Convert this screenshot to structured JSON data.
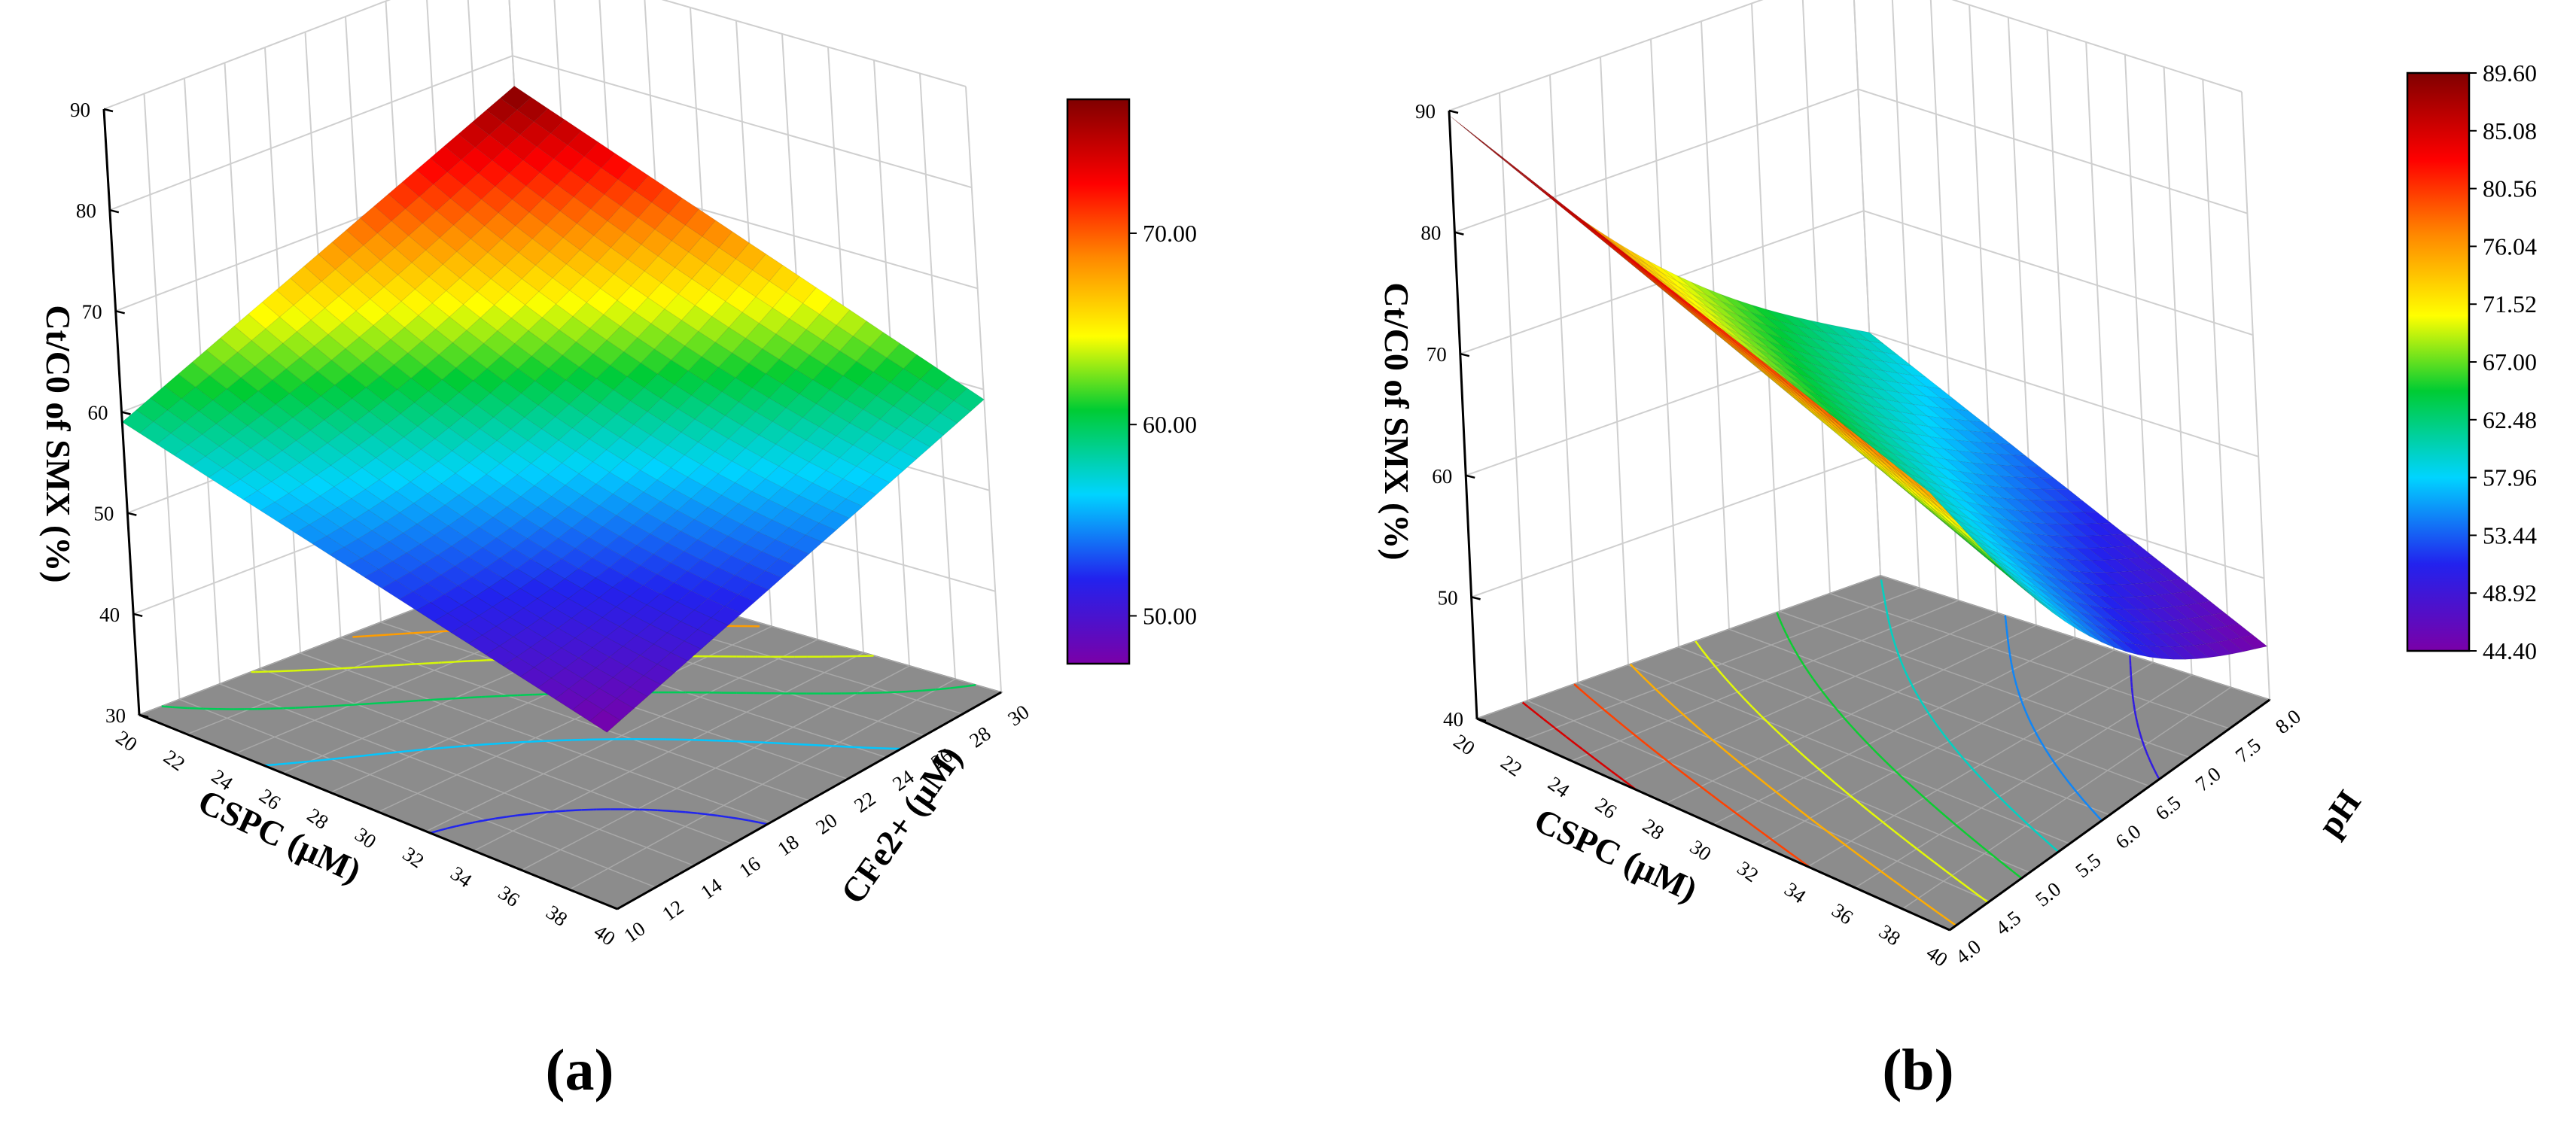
{
  "panels": [
    {
      "id": "a",
      "label": "(a)",
      "chart_data": {
        "type": "surface3d",
        "x_label": "CSPC (μM)",
        "x_ticks": [
          "20",
          "22",
          "24",
          "26",
          "28",
          "30",
          "32",
          "34",
          "36",
          "38",
          "40"
        ],
        "y_label": "CFe2+ (μM)",
        "y_ticks": [
          "10",
          "12",
          "14",
          "16",
          "18",
          "20",
          "22",
          "24",
          "26",
          "28",
          "30"
        ],
        "z_label": "Ct/C0 of SMX (%)",
        "z_ticks": [
          "30",
          "40",
          "50",
          "60",
          "70",
          "80",
          "90"
        ],
        "zlim": [
          30,
          90
        ],
        "colorbar": {
          "min": 47.5,
          "max": 77.0,
          "ticks": [
            "50.00",
            "60.00",
            "70.00"
          ]
        },
        "surface_corners": {
          "x20_y10": 59.0,
          "x40_y10": 47.5,
          "x20_y30": 77.0,
          "x40_y30": 59.0
        },
        "contour_levels": [
          52,
          56,
          60,
          64,
          68,
          72
        ]
      }
    },
    {
      "id": "b",
      "label": "(b)",
      "chart_data": {
        "type": "surface3d",
        "x_label": "CSPC (μM)",
        "x_ticks": [
          "20",
          "22",
          "24",
          "26",
          "28",
          "30",
          "32",
          "34",
          "36",
          "38",
          "40"
        ],
        "y_label": "pH",
        "y_ticks": [
          "4.0",
          "4.5",
          "5.0",
          "5.5",
          "6.0",
          "6.5",
          "7.0",
          "7.5",
          "8.0"
        ],
        "z_label": "Ct/C0 of SMX (%)",
        "z_ticks": [
          "40",
          "50",
          "60",
          "70",
          "80",
          "90"
        ],
        "zlim": [
          40,
          90
        ],
        "colorbar": {
          "min": 44.4,
          "max": 89.6,
          "ticks": [
            "89.60",
            "85.08",
            "80.56",
            "76.04",
            "71.52",
            "67.00",
            "62.48",
            "57.96",
            "53.44",
            "48.92",
            "44.40"
          ]
        },
        "surface_corners": {
          "x20_pH4": 89.6,
          "x40_pH4": 76.0,
          "x20_pH8": 60.0,
          "x40_pH8": 44.4
        },
        "contour_levels": [
          50,
          55,
          60,
          65,
          70,
          75,
          80,
          85
        ]
      }
    }
  ]
}
